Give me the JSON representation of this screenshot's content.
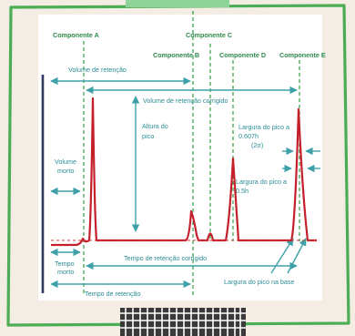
{
  "colors": {
    "accent_green": "#4cae54",
    "arrow_teal": "#3fa1a8",
    "peak_red": "#c41f2b",
    "baseline_red": "#d83a3a",
    "axis_navy": "#2f3a61"
  },
  "components": [
    {
      "label": "Componente A"
    },
    {
      "label": "Componente B"
    },
    {
      "label": "Componente C"
    },
    {
      "label": "Componente D"
    },
    {
      "label": "Componente E"
    }
  ],
  "labels": {
    "retention_volume": "Volume de retenção",
    "corrected_retention_volume": "Volume de retenção corrigido",
    "peak_height_1": "Altura do",
    "peak_height_2": "pico",
    "dead_volume_1": "Volume",
    "dead_volume_2": "morto",
    "width_0607_1": "Largura do pico a",
    "width_0607_2": "0.607h",
    "width_0607_3": "(2σ)",
    "width_05_1": "Largura do pico a",
    "width_05_2": "0.5h",
    "corrected_retention_time": "Tempo de retenção corrigido",
    "dead_time_1": "Tempo",
    "dead_time_2": "morto",
    "base_width": "Largura do pico na base",
    "retention_time": "Tempo de retenção"
  }
}
